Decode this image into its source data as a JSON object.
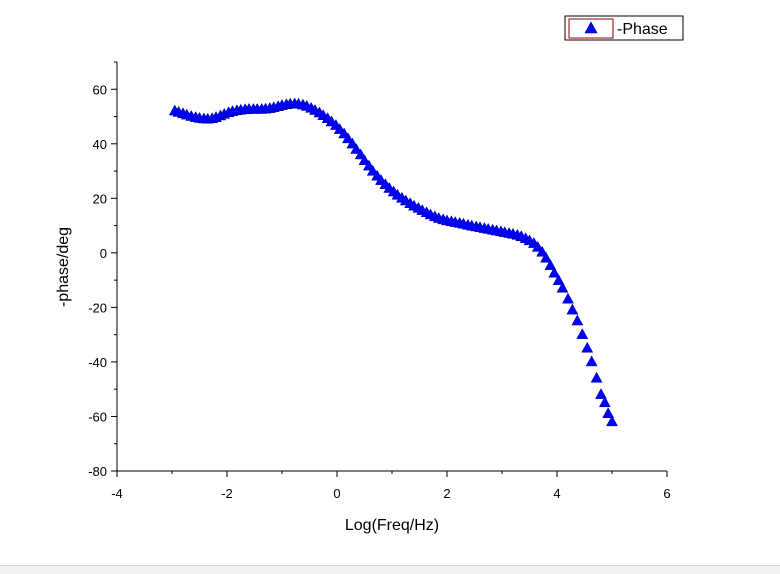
{
  "chart_data": {
    "type": "scatter",
    "title": "",
    "xlabel": "Log(Freq/Hz)",
    "ylabel": "-phase/deg",
    "xlim": [
      -4,
      6
    ],
    "ylim": [
      -80,
      70
    ],
    "x_ticks": [
      -4,
      -2,
      0,
      2,
      4,
      6
    ],
    "y_ticks": [
      -80,
      -60,
      -40,
      -20,
      0,
      20,
      40,
      60
    ],
    "grid": false,
    "legend": {
      "position": "top-right",
      "entries": [
        "-Phase"
      ]
    },
    "series": [
      {
        "name": "-Phase",
        "color": "#0000ff",
        "marker": "triangle-up",
        "points": [
          [
            -2.95,
            52.0
          ],
          [
            -2.88,
            51.5
          ],
          [
            -2.8,
            51.0
          ],
          [
            -2.73,
            50.5
          ],
          [
            -2.65,
            50.0
          ],
          [
            -2.57,
            49.6
          ],
          [
            -2.5,
            49.3
          ],
          [
            -2.42,
            49.1
          ],
          [
            -2.35,
            49.0
          ],
          [
            -2.27,
            49.2
          ],
          [
            -2.2,
            49.6
          ],
          [
            -2.12,
            50.2
          ],
          [
            -2.05,
            50.8
          ],
          [
            -1.97,
            51.4
          ],
          [
            -1.9,
            51.8
          ],
          [
            -1.82,
            52.1
          ],
          [
            -1.75,
            52.3
          ],
          [
            -1.67,
            52.5
          ],
          [
            -1.6,
            52.6
          ],
          [
            -1.52,
            52.6
          ],
          [
            -1.45,
            52.6
          ],
          [
            -1.37,
            52.6
          ],
          [
            -1.3,
            52.7
          ],
          [
            -1.22,
            52.9
          ],
          [
            -1.15,
            53.2
          ],
          [
            -1.07,
            53.6
          ],
          [
            -1.0,
            54.0
          ],
          [
            -0.92,
            54.3
          ],
          [
            -0.85,
            54.5
          ],
          [
            -0.77,
            54.6
          ],
          [
            -0.7,
            54.5
          ],
          [
            -0.62,
            54.2
          ],
          [
            -0.55,
            53.7
          ],
          [
            -0.47,
            53.0
          ],
          [
            -0.4,
            52.2
          ],
          [
            -0.32,
            51.3
          ],
          [
            -0.25,
            50.3
          ],
          [
            -0.17,
            49.2
          ],
          [
            -0.1,
            48.0
          ],
          [
            -0.02,
            46.7
          ],
          [
            0.05,
            45.2
          ],
          [
            0.13,
            43.6
          ],
          [
            0.2,
            41.8
          ],
          [
            0.28,
            39.9
          ],
          [
            0.35,
            37.9
          ],
          [
            0.43,
            35.9
          ],
          [
            0.5,
            33.8
          ],
          [
            0.58,
            31.8
          ],
          [
            0.65,
            29.9
          ],
          [
            0.73,
            28.1
          ],
          [
            0.8,
            26.5
          ],
          [
            0.88,
            25.0
          ],
          [
            0.95,
            23.6
          ],
          [
            1.03,
            22.3
          ],
          [
            1.1,
            21.1
          ],
          [
            1.18,
            20.0
          ],
          [
            1.25,
            19.0
          ],
          [
            1.33,
            18.0
          ],
          [
            1.4,
            17.1
          ],
          [
            1.48,
            16.3
          ],
          [
            1.55,
            15.5
          ],
          [
            1.63,
            14.7
          ],
          [
            1.7,
            13.9
          ],
          [
            1.78,
            13.2
          ],
          [
            1.85,
            12.6
          ],
          [
            1.93,
            12.1
          ],
          [
            2.0,
            11.7
          ],
          [
            2.08,
            11.4
          ],
          [
            2.15,
            11.1
          ],
          [
            2.23,
            10.8
          ],
          [
            2.3,
            10.5
          ],
          [
            2.38,
            10.1
          ],
          [
            2.45,
            9.8
          ],
          [
            2.53,
            9.5
          ],
          [
            2.6,
            9.2
          ],
          [
            2.68,
            8.9
          ],
          [
            2.75,
            8.6
          ],
          [
            2.83,
            8.3
          ],
          [
            2.9,
            8.0
          ],
          [
            2.98,
            7.7
          ],
          [
            3.05,
            7.4
          ],
          [
            3.13,
            7.1
          ],
          [
            3.2,
            6.8
          ],
          [
            3.28,
            6.4
          ],
          [
            3.35,
            5.9
          ],
          [
            3.43,
            5.2
          ],
          [
            3.5,
            4.4
          ],
          [
            3.58,
            3.4
          ],
          [
            3.65,
            2.0
          ],
          [
            3.73,
            0.2
          ],
          [
            3.8,
            -2.0
          ],
          [
            3.88,
            -4.7
          ],
          [
            3.95,
            -7.5
          ],
          [
            4.03,
            -10.2
          ],
          [
            4.1,
            -13.0
          ],
          [
            4.2,
            -17.0
          ],
          [
            4.28,
            -21.0
          ],
          [
            4.37,
            -25.0
          ],
          [
            4.46,
            -30.0
          ],
          [
            4.55,
            -35.0
          ],
          [
            4.63,
            -40.0
          ],
          [
            4.72,
            -46.0
          ],
          [
            4.8,
            -52.0
          ],
          [
            4.87,
            -55.0
          ],
          [
            4.93,
            -59.0
          ],
          [
            5.0,
            -62.0
          ]
        ]
      }
    ]
  }
}
